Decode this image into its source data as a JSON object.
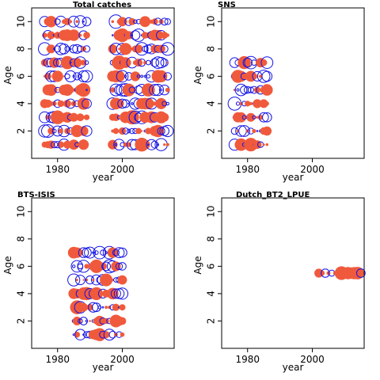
{
  "colors": {
    "positive": "#f05a3c",
    "negative": "#1414e6",
    "axis": "#000000"
  },
  "chart_data": [
    {
      "type": "scatter",
      "title": "Total catches",
      "xlabel": "year",
      "ylabel": "Age",
      "xlim": [
        1972,
        2016
      ],
      "ylim": [
        0,
        11
      ],
      "xticks": [
        1980,
        2000
      ],
      "yticks": [
        2,
        4,
        6,
        8,
        10
      ],
      "ages": [
        1,
        2,
        3,
        4,
        5,
        6,
        7,
        8,
        9,
        10
      ],
      "year_ranges": [
        [
          1976,
          1989
        ],
        [
          1997,
          2014
        ]
      ],
      "note": "bubble plot of residuals by age and year; filled = positive, open = negative"
    },
    {
      "type": "scatter",
      "title": "SNS",
      "xlabel": "year",
      "ylabel": "Age",
      "xlim": [
        1972,
        2016
      ],
      "ylim": [
        0,
        11
      ],
      "xticks": [
        1980,
        2000
      ],
      "yticks": [
        2,
        4,
        6,
        8,
        10
      ],
      "ages": [
        1,
        2,
        3,
        4,
        5,
        6,
        7
      ],
      "year_ranges": [
        [
          1976,
          1986
        ]
      ],
      "note": "bubble plot of residuals by age and year; filled = positive, open = negative"
    },
    {
      "type": "scatter",
      "title": "BTS-ISIS",
      "xlabel": "year",
      "ylabel": "Age",
      "xlim": [
        1972,
        2016
      ],
      "ylim": [
        0,
        11
      ],
      "xticks": [
        1980,
        2000
      ],
      "yticks": [
        2,
        4,
        6,
        8,
        10
      ],
      "ages": [
        1,
        2,
        3,
        4,
        5,
        6,
        7
      ],
      "year_ranges": [
        [
          1985,
          2000
        ]
      ],
      "note": "bubble plot of residuals by age and year; filled = positive, open = negative"
    },
    {
      "type": "scatter",
      "title": "Dutch_BT2_LPUE",
      "xlabel": "year",
      "ylabel": "Age",
      "xlim": [
        1972,
        2016
      ],
      "ylim": [
        0,
        11
      ],
      "xticks": [
        1980,
        2000
      ],
      "yticks": [
        2,
        4,
        6,
        8,
        10
      ],
      "ages": [
        5.5
      ],
      "year_ranges": [
        [
          2002,
          2015
        ]
      ],
      "note": "bubble plot of residuals by age and year; filled = positive, open = negative"
    }
  ]
}
